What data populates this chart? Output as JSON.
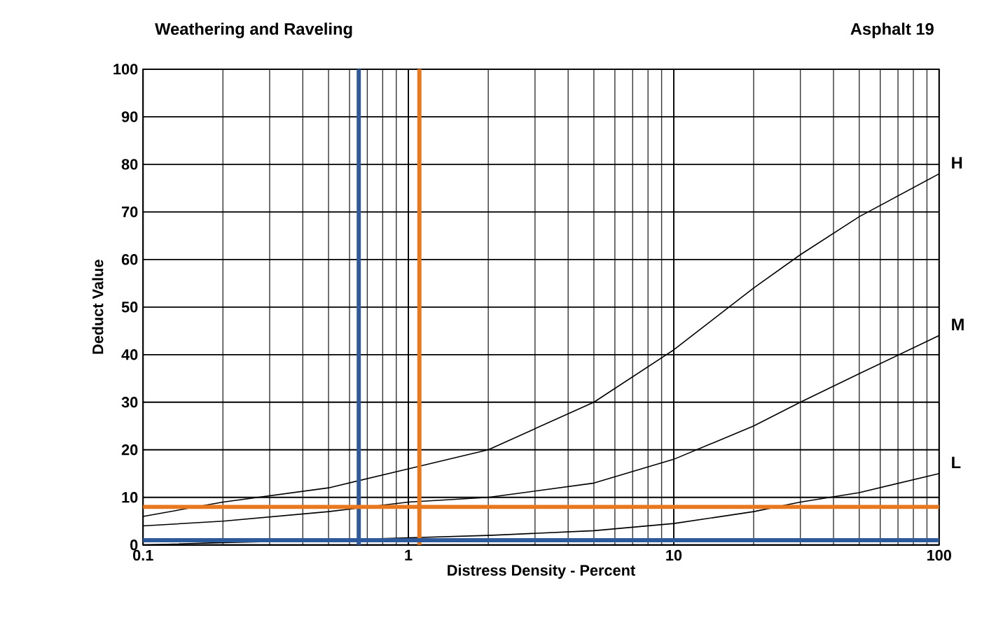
{
  "chart_data": {
    "type": "line",
    "title": "Weathering and Raveling",
    "subtitle": "Asphalt 19",
    "xlabel": "Distress Density - Percent",
    "ylabel": "Deduct Value",
    "log": "x",
    "grid": true,
    "legend": false,
    "marker": "none",
    "line_style": "solid",
    "xlim": [
      0.1,
      100
    ],
    "xticks": [
      0.1,
      1,
      10,
      100
    ],
    "ylim": [
      0,
      100
    ],
    "yticks": [
      0,
      10,
      20,
      30,
      40,
      50,
      60,
      70,
      80,
      90,
      100
    ],
    "x": [
      0.1,
      0.2,
      0.5,
      1,
      2,
      5,
      10,
      20,
      30,
      50,
      100
    ],
    "series": [
      {
        "name": "H",
        "color": "#000000",
        "values": [
          6,
          9,
          12,
          16,
          20,
          30,
          41,
          54,
          61,
          69,
          78
        ]
      },
      {
        "name": "M",
        "color": "#000000",
        "values": [
          4,
          5,
          7,
          9,
          10,
          13,
          18,
          25,
          30,
          36,
          44
        ]
      },
      {
        "name": "L",
        "color": "#000000",
        "values": [
          0,
          0.5,
          1,
          1.5,
          2,
          3,
          4.5,
          7,
          9,
          11,
          15
        ]
      }
    ],
    "ref_lines": [
      {
        "axis": "x",
        "value": 0.65,
        "color": "#2e5a9c"
      },
      {
        "axis": "x",
        "value": 1.1,
        "color": "#e8771e"
      },
      {
        "axis": "y",
        "value": 8,
        "color": "#e8771e"
      },
      {
        "axis": "y",
        "value": 1,
        "color": "#2e5a9c"
      }
    ]
  }
}
